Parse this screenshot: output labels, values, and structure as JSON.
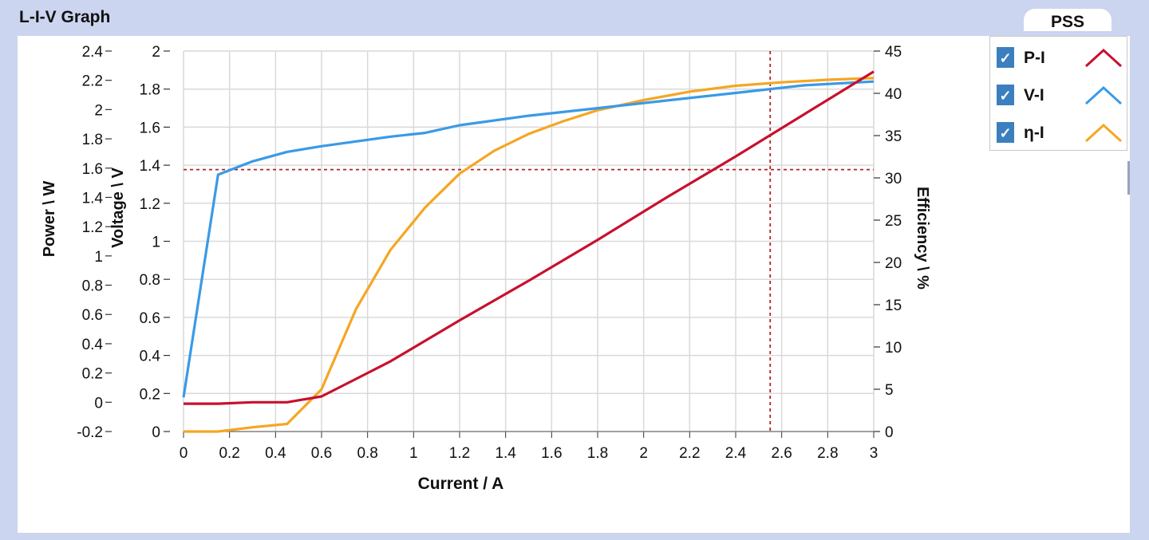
{
  "panel": {
    "title": "L-I-V Graph"
  },
  "pss_tab": {
    "label": "PSS"
  },
  "legend": {
    "items": [
      {
        "label": "P-I",
        "check": "✓",
        "color": "#c8102e",
        "checked": true
      },
      {
        "label": "V-I",
        "check": "✓",
        "color": "#3a9ae6",
        "checked": true
      },
      {
        "label": "η-I",
        "check": "✓",
        "color": "#f5a623",
        "checked": true
      }
    ]
  },
  "chart_data": {
    "type": "line",
    "xlabel": "Current / A",
    "xlim": [
      0,
      3
    ],
    "xticks": [
      0,
      0.2,
      0.4,
      0.6,
      0.8,
      1,
      1.2,
      1.4,
      1.6,
      1.8,
      2,
      2.2,
      2.4,
      2.6,
      2.8,
      3
    ],
    "xtick_labels": [
      "0",
      "0.2",
      "0.4",
      "0.6",
      "0.8",
      "1",
      "1.2",
      "1.4",
      "1.6",
      "1.8",
      "2",
      "2.2",
      "2.4",
      "2.6",
      "2.8",
      "3"
    ],
    "axes": {
      "power": {
        "label": "Power \\ W",
        "ylim": [
          -0.2,
          2.4
        ],
        "ticks": [
          -0.2,
          0,
          0.2,
          0.4,
          0.6,
          0.8,
          1,
          1.2,
          1.4,
          1.6,
          1.8,
          2,
          2.2,
          2.4
        ],
        "tick_labels": [
          "-0.2",
          "0",
          "0.2",
          "0.4",
          "0.6",
          "0.8",
          "1",
          "1.2",
          "1.4",
          "1.6",
          "1.8",
          "2",
          "2.2",
          "2.4"
        ]
      },
      "voltage": {
        "label": "Voltage \\ V",
        "ylim": [
          0,
          2
        ],
        "ticks": [
          0,
          0.2,
          0.4,
          0.6,
          0.8,
          1,
          1.2,
          1.4,
          1.6,
          1.8,
          2
        ],
        "tick_labels": [
          "0",
          "0.2",
          "0.4",
          "0.6",
          "0.8",
          "1",
          "1.2",
          "1.4",
          "1.6",
          "1.8",
          "2"
        ]
      },
      "efficiency": {
        "label": "Efficiency \\ %",
        "ylim": [
          0,
          45
        ],
        "ticks": [
          0,
          5,
          10,
          15,
          20,
          25,
          30,
          35,
          40,
          45
        ],
        "tick_labels": [
          "0",
          "5",
          "10",
          "15",
          "20",
          "25",
          "30",
          "35",
          "40",
          "45"
        ]
      }
    },
    "series": [
      {
        "name": "P-I",
        "axis": "power",
        "color": "#c8102e",
        "x": [
          0,
          0.15,
          0.3,
          0.45,
          0.6,
          0.75,
          0.9,
          1.05,
          1.2,
          1.5,
          1.8,
          2.1,
          2.4,
          2.7,
          3.0
        ],
        "y": [
          -0.01,
          -0.01,
          0.0,
          0.0,
          0.04,
          0.16,
          0.28,
          0.42,
          0.56,
          0.83,
          1.11,
          1.4,
          1.68,
          1.97,
          2.26
        ]
      },
      {
        "name": "V-I",
        "axis": "voltage",
        "color": "#3a9ae6",
        "x": [
          0,
          0.15,
          0.3,
          0.45,
          0.6,
          0.9,
          1.05,
          1.2,
          1.5,
          1.8,
          2.1,
          2.4,
          2.7,
          3.0
        ],
        "y": [
          0.18,
          1.35,
          1.42,
          1.47,
          1.5,
          1.55,
          1.57,
          1.61,
          1.66,
          1.7,
          1.74,
          1.78,
          1.82,
          1.84
        ]
      },
      {
        "name": "η-I",
        "axis": "efficiency",
        "color": "#f5a623",
        "x": [
          0,
          0.15,
          0.3,
          0.45,
          0.6,
          0.75,
          0.9,
          1.05,
          1.2,
          1.35,
          1.5,
          1.65,
          1.8,
          2.0,
          2.2,
          2.4,
          2.6,
          2.8,
          3.0
        ],
        "y": [
          0,
          0,
          0.5,
          0.9,
          5.0,
          14.5,
          21.5,
          26.5,
          30.5,
          33.2,
          35.2,
          36.7,
          38.0,
          39.2,
          40.2,
          40.9,
          41.3,
          41.6,
          41.8
        ]
      }
    ],
    "crosshair": {
      "x": 2.55,
      "power": 1.59,
      "color": "#b22222"
    },
    "grid": true
  }
}
